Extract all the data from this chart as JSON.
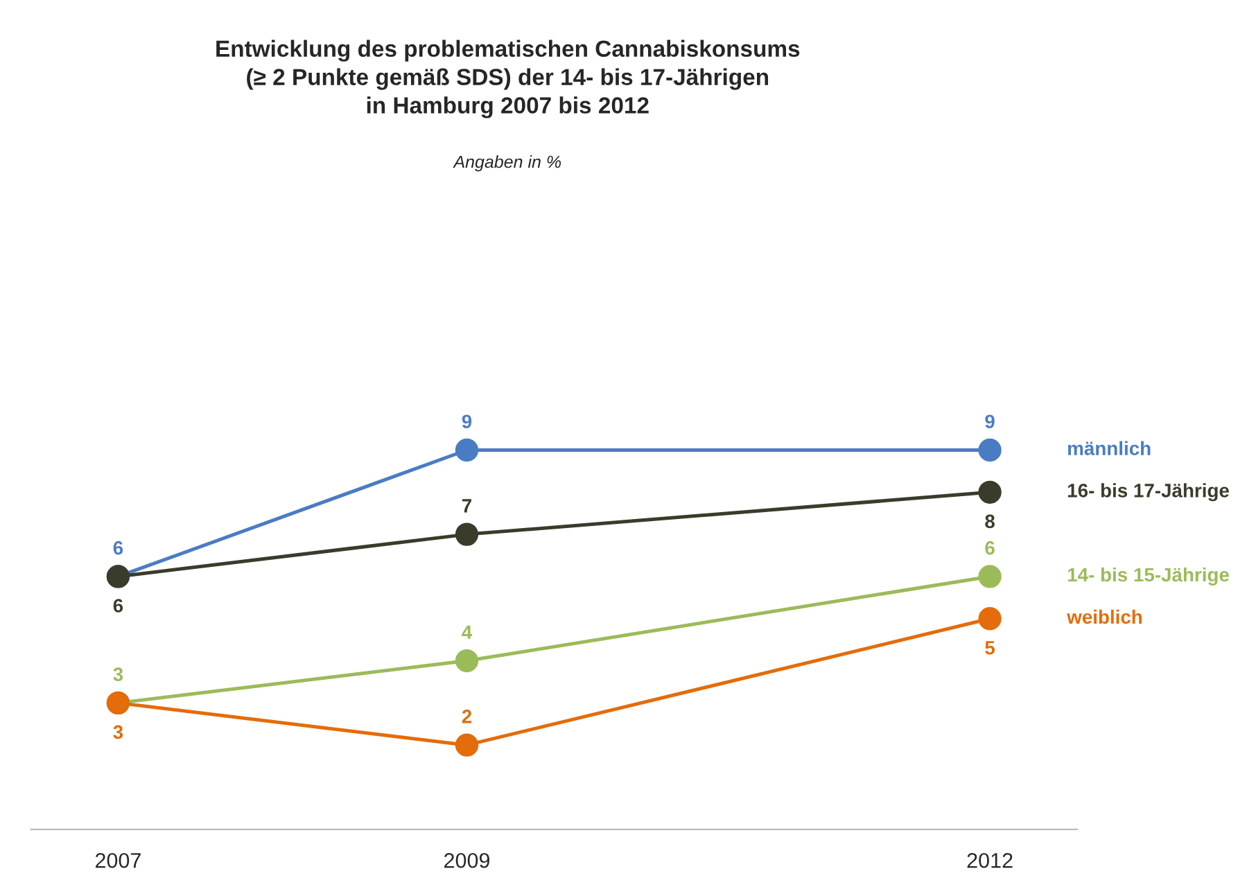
{
  "chart_data": {
    "type": "line",
    "title": "Entwicklung des problematischen Cannabiskonsums\n(≥ 2 Punkte gemäß SDS) der 14- bis 17-Jährigen\nin Hamburg 2007 bis 2012",
    "subtitle": "Angaben in %",
    "x": [
      2007,
      2009,
      2012
    ],
    "xlim": [
      2006.5,
      2012.5
    ],
    "xticks": [
      2007,
      2009,
      2012
    ],
    "series": [
      {
        "name": "männlich",
        "color": "#4a7cc4",
        "values": [
          6,
          9,
          9
        ]
      },
      {
        "name": "16- bis 17-Jährige",
        "color": "#3b3b2b",
        "values": [
          6,
          7,
          8
        ]
      },
      {
        "name": "14- bis 15-Jährige",
        "color": "#9bbb59",
        "values": [
          3,
          4,
          6
        ]
      },
      {
        "name": "weiblich",
        "color": "#e46c0a",
        "values": [
          3,
          2,
          5
        ]
      }
    ],
    "data_labels": true,
    "marker": "circle",
    "line_style": "solid",
    "grid": false,
    "legend": false,
    "tick_labels": "x"
  }
}
